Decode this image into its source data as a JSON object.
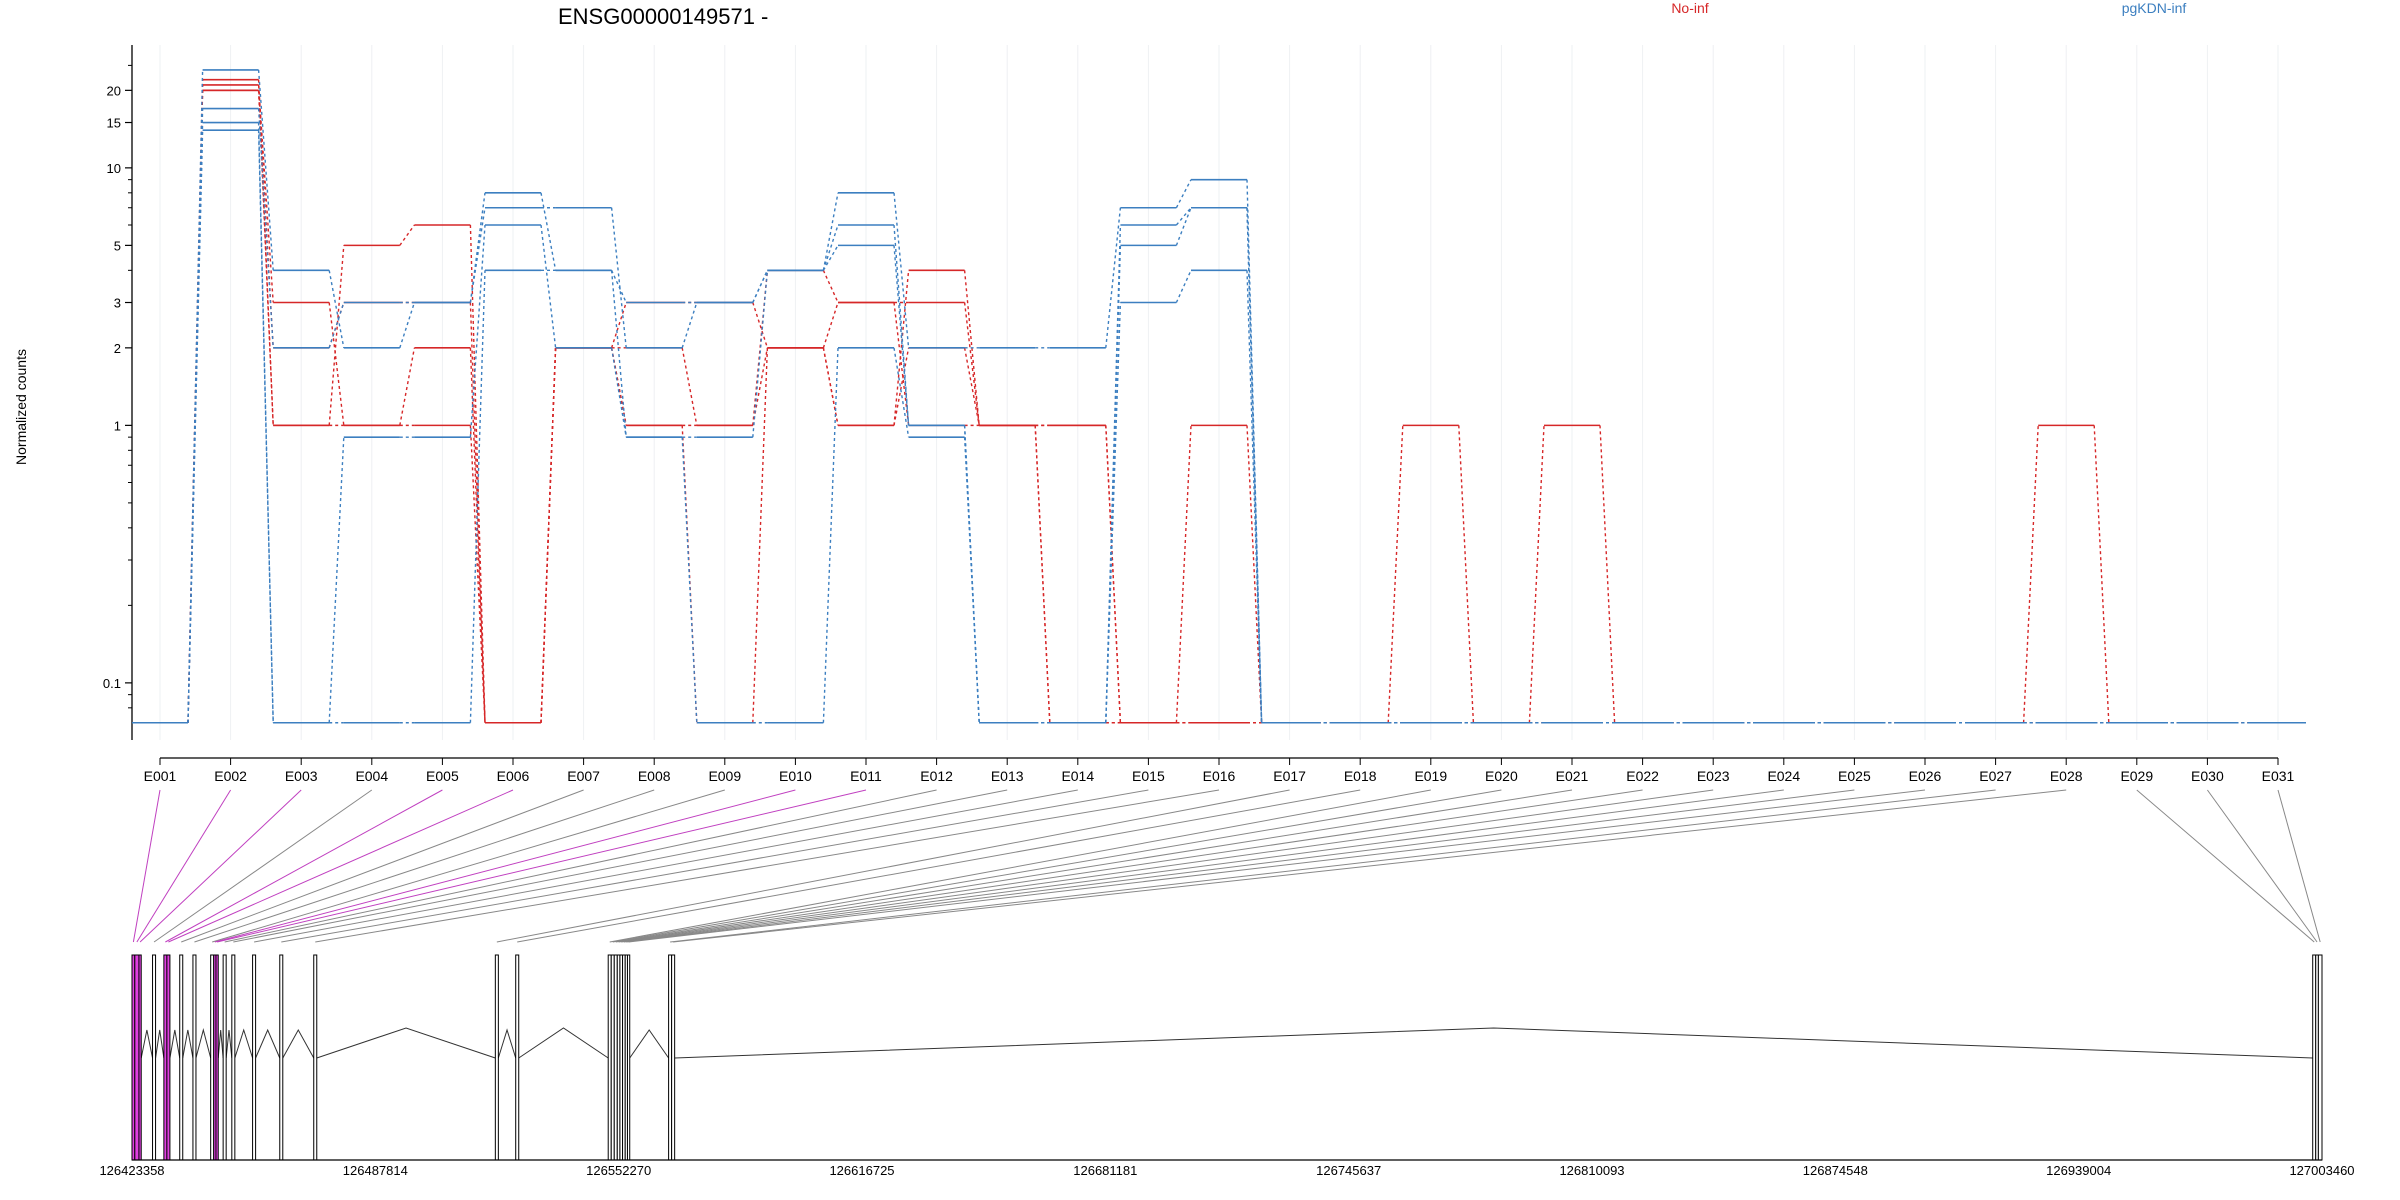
{
  "chart_data": {
    "type": "line",
    "title": "ENSG00000149571 -",
    "ylabel": "Normalized counts",
    "y_scale": "log",
    "ylim": [
      0.07,
      28
    ],
    "y_ticks": [
      0.1,
      1,
      2,
      3,
      5,
      10,
      15,
      20
    ],
    "y_tick_labels": [
      "0.1",
      "1",
      "2",
      "3",
      "5",
      "10",
      "15",
      "20"
    ],
    "zero_floor": 0.07,
    "categories": [
      "E001",
      "E002",
      "E003",
      "E004",
      "E005",
      "E006",
      "E007",
      "E008",
      "E009",
      "E010",
      "E011",
      "E012",
      "E013",
      "E014",
      "E015",
      "E016",
      "E017",
      "E018",
      "E019",
      "E020",
      "E021",
      "E022",
      "E023",
      "E024",
      "E025",
      "E026",
      "E027",
      "E028",
      "E029",
      "E030",
      "E031"
    ],
    "legend": [
      {
        "name": "No-inf",
        "color": "#d62728"
      },
      {
        "name": "pgKDN-inf",
        "color": "#3c7fc0"
      }
    ],
    "series": [
      {
        "group": "No-inf",
        "values": [
          0,
          22,
          1,
          5,
          6,
          0,
          2,
          1,
          0,
          2,
          1,
          2,
          1,
          1,
          0,
          1,
          0,
          0,
          1,
          0,
          1,
          0,
          0,
          0,
          0,
          0,
          0,
          1,
          0,
          0,
          0
        ]
      },
      {
        "group": "No-inf",
        "values": [
          0,
          20,
          2,
          3,
          3,
          0,
          2,
          2,
          1,
          4,
          3,
          3,
          1,
          1,
          0,
          0,
          0,
          0,
          0,
          0,
          0,
          0,
          0,
          0,
          0,
          0,
          0,
          0,
          0,
          0,
          0
        ]
      },
      {
        "group": "No-inf",
        "values": [
          0,
          21,
          3,
          1,
          2,
          0,
          2,
          3,
          3,
          2,
          1,
          4,
          1,
          0,
          0,
          0,
          0,
          0,
          0,
          0,
          0,
          0,
          0,
          0,
          0,
          0,
          0,
          0,
          0,
          0,
          0
        ]
      },
      {
        "group": "No-inf",
        "values": [
          0,
          20,
          1,
          1,
          1,
          0,
          2,
          1,
          1,
          2,
          3,
          1,
          1,
          0,
          0,
          0,
          0,
          0,
          0,
          0,
          0,
          0,
          0,
          0,
          0,
          0,
          0,
          0,
          0,
          0,
          0
        ]
      },
      {
        "group": "pgKDN-inf",
        "values": [
          0,
          24,
          4,
          2,
          3,
          8,
          4,
          3,
          3,
          4,
          8,
          2,
          2,
          2,
          7,
          9,
          0,
          0,
          0,
          0,
          0,
          0,
          0,
          0,
          0,
          0,
          0,
          0,
          0,
          0,
          0
        ]
      },
      {
        "group": "pgKDN-inf",
        "values": [
          0,
          17,
          2,
          3,
          3,
          7,
          7,
          2,
          3,
          4,
          6,
          1,
          0,
          0,
          6,
          7,
          0,
          0,
          0,
          0,
          0,
          0,
          0,
          0,
          0,
          0,
          0,
          0,
          0,
          0,
          0
        ]
      },
      {
        "group": "pgKDN-inf",
        "values": [
          0,
          15,
          0,
          0.9,
          0.9,
          6,
          2,
          0.9,
          0.9,
          4,
          5,
          1,
          0,
          0,
          5,
          7,
          0,
          0,
          0,
          0,
          0,
          0,
          0,
          0,
          0,
          0,
          0,
          0,
          0,
          0,
          0
        ]
      },
      {
        "group": "pgKDN-inf",
        "values": [
          0,
          14,
          0,
          0,
          0,
          4,
          4,
          0.9,
          0,
          0,
          2,
          0.9,
          0,
          0,
          3,
          4,
          0,
          0,
          0,
          0,
          0,
          0,
          0,
          0,
          0,
          0,
          0,
          0,
          0,
          0,
          0
        ]
      }
    ],
    "gene_model": {
      "coord_ticks": [
        "126423358",
        "126487814",
        "126552270",
        "126616725",
        "126681181",
        "126745637",
        "126810093",
        "126874548",
        "126939004",
        "127003460"
      ],
      "range": [
        126423358,
        127003460
      ],
      "exons": [
        {
          "id": "E001",
          "start": 126423358,
          "end": 126424100,
          "highlight": true
        },
        {
          "id": "E002",
          "start": 126424100,
          "end": 126425200,
          "highlight": true
        },
        {
          "id": "E003",
          "start": 126425200,
          "end": 126425800,
          "highlight": true
        },
        {
          "id": "E004",
          "start": 126428800,
          "end": 126429600,
          "highlight": false
        },
        {
          "id": "E005",
          "start": 126431800,
          "end": 126432600,
          "highlight": true
        },
        {
          "id": "E006",
          "start": 126432600,
          "end": 126433400,
          "highlight": true
        },
        {
          "id": "E007",
          "start": 126436000,
          "end": 126436800,
          "highlight": false
        },
        {
          "id": "E008",
          "start": 126439500,
          "end": 126440300,
          "highlight": false
        },
        {
          "id": "E009",
          "start": 126444200,
          "end": 126445000,
          "highlight": false
        },
        {
          "id": "E010",
          "start": 126445000,
          "end": 126445600,
          "highlight": true
        },
        {
          "id": "E011",
          "start": 126445600,
          "end": 126446200,
          "highlight": true
        },
        {
          "id": "E012",
          "start": 126447500,
          "end": 126448300,
          "highlight": false
        },
        {
          "id": "E013",
          "start": 126449800,
          "end": 126450600,
          "highlight": false
        },
        {
          "id": "E014",
          "start": 126455300,
          "end": 126456100,
          "highlight": false
        },
        {
          "id": "E015",
          "start": 126462500,
          "end": 126463300,
          "highlight": false
        },
        {
          "id": "E016",
          "start": 126471500,
          "end": 126472300,
          "highlight": false
        },
        {
          "id": "E017",
          "start": 126519600,
          "end": 126520400,
          "highlight": false
        },
        {
          "id": "E018",
          "start": 126525000,
          "end": 126525800,
          "highlight": false
        },
        {
          "id": "E019",
          "start": 126549500,
          "end": 126550300,
          "highlight": false
        },
        {
          "id": "E020",
          "start": 126550300,
          "end": 126551100,
          "highlight": false
        },
        {
          "id": "E021",
          "start": 126551100,
          "end": 126551900,
          "highlight": false
        },
        {
          "id": "E022",
          "start": 126551900,
          "end": 126552600,
          "highlight": false
        },
        {
          "id": "E023",
          "start": 126552600,
          "end": 126553300,
          "highlight": false
        },
        {
          "id": "E024",
          "start": 126553300,
          "end": 126554000,
          "highlight": false
        },
        {
          "id": "E025",
          "start": 126554000,
          "end": 126554600,
          "highlight": false
        },
        {
          "id": "E026",
          "start": 126554600,
          "end": 126555200,
          "highlight": false
        },
        {
          "id": "E027",
          "start": 126565500,
          "end": 126566300,
          "highlight": false
        },
        {
          "id": "E028",
          "start": 126566300,
          "end": 126567100,
          "highlight": false
        },
        {
          "id": "E029",
          "start": 127001000,
          "end": 127001800,
          "highlight": false
        },
        {
          "id": "E030",
          "start": 127001800,
          "end": 127002500,
          "highlight": false
        },
        {
          "id": "E031",
          "start": 127002500,
          "end": 127003460,
          "highlight": false
        }
      ]
    }
  }
}
